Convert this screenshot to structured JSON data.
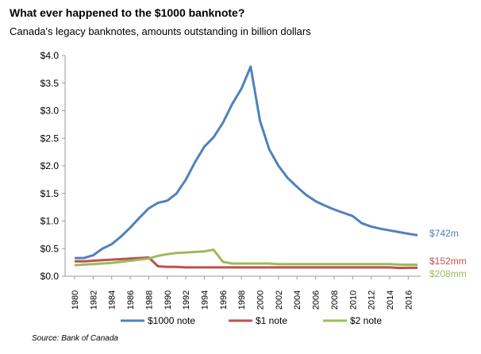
{
  "chart_data": {
    "type": "line",
    "title": "What ever happened to the $1000 banknote?",
    "subtitle": "Canada's legacy banknotes, amounts outstanding in billion dollars",
    "source": "Source: Bank of Canada",
    "xlabel": "",
    "ylabel": "",
    "ylim": [
      0,
      4.0
    ],
    "yticks": [
      "$0.0",
      "$0.5",
      "$1.0",
      "$1.5",
      "$2.0",
      "$2.5",
      "$3.0",
      "$3.5",
      "$4.0"
    ],
    "xticks": [
      "1980",
      "1982",
      "1984",
      "1986",
      "1988",
      "1990",
      "1992",
      "1994",
      "1996",
      "1998",
      "2000",
      "2002",
      "2004",
      "2006",
      "2008",
      "2010",
      "2012",
      "2014",
      "2016"
    ],
    "x": [
      1980,
      1981,
      1982,
      1983,
      1984,
      1985,
      1986,
      1987,
      1988,
      1989,
      1990,
      1991,
      1992,
      1993,
      1994,
      1995,
      1996,
      1997,
      1998,
      1999,
      2000,
      2001,
      2002,
      2003,
      2004,
      2005,
      2006,
      2007,
      2008,
      2009,
      2010,
      2011,
      2012,
      2013,
      2014,
      2015,
      2016,
      2017
    ],
    "series": [
      {
        "name": "$1000 note",
        "color": "#4f81bd",
        "end_label": "$742m",
        "values": [
          0.33,
          0.33,
          0.38,
          0.5,
          0.58,
          0.72,
          0.88,
          1.06,
          1.23,
          1.33,
          1.37,
          1.5,
          1.75,
          2.07,
          2.35,
          2.52,
          2.78,
          3.12,
          3.4,
          3.8,
          2.82,
          2.3,
          2.0,
          1.78,
          1.62,
          1.47,
          1.36,
          1.28,
          1.21,
          1.15,
          1.09,
          0.96,
          0.9,
          0.86,
          0.83,
          0.8,
          0.77,
          0.742
        ]
      },
      {
        "name": "$1 note",
        "color": "#c0504d",
        "end_label": "$152mm",
        "values": [
          0.27,
          0.27,
          0.28,
          0.29,
          0.3,
          0.31,
          0.32,
          0.33,
          0.34,
          0.18,
          0.17,
          0.17,
          0.16,
          0.16,
          0.16,
          0.16,
          0.16,
          0.16,
          0.16,
          0.16,
          0.16,
          0.16,
          0.16,
          0.16,
          0.16,
          0.16,
          0.16,
          0.16,
          0.16,
          0.16,
          0.16,
          0.16,
          0.16,
          0.16,
          0.16,
          0.15,
          0.152,
          0.152
        ]
      },
      {
        "name": "$2 note",
        "color": "#9bbb59",
        "end_label": "$208mm",
        "values": [
          0.2,
          0.21,
          0.22,
          0.23,
          0.24,
          0.26,
          0.28,
          0.3,
          0.32,
          0.37,
          0.4,
          0.42,
          0.43,
          0.44,
          0.45,
          0.48,
          0.26,
          0.23,
          0.23,
          0.23,
          0.23,
          0.23,
          0.22,
          0.22,
          0.22,
          0.22,
          0.22,
          0.22,
          0.22,
          0.22,
          0.22,
          0.22,
          0.22,
          0.22,
          0.22,
          0.21,
          0.208,
          0.208
        ]
      }
    ],
    "grid": false,
    "legend": "bottom"
  }
}
